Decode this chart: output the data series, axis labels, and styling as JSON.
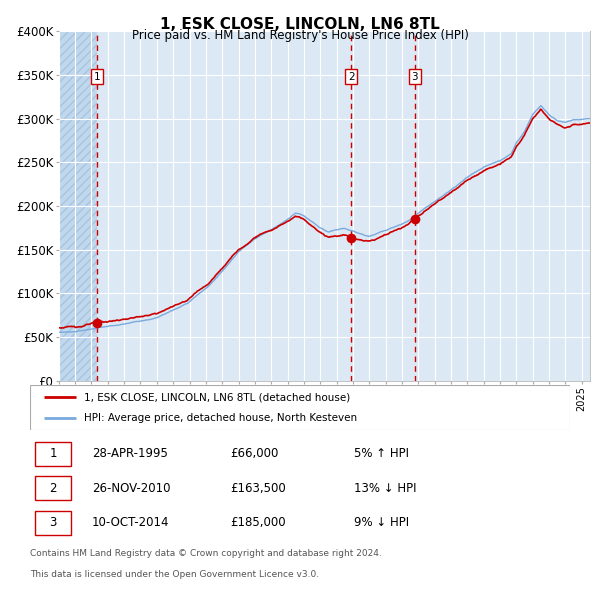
{
  "title": "1, ESK CLOSE, LINCOLN, LN6 8TL",
  "subtitle": "Price paid vs. HM Land Registry's House Price Index (HPI)",
  "ylim": [
    0,
    400000
  ],
  "yticks": [
    0,
    50000,
    100000,
    150000,
    200000,
    250000,
    300000,
    350000,
    400000
  ],
  "ytick_labels": [
    "£0",
    "£50K",
    "£100K",
    "£150K",
    "£200K",
    "£250K",
    "£300K",
    "£350K",
    "£400K"
  ],
  "bg_color": "#dce9f5",
  "grid_color": "#ffffff",
  "red_line_color": "#cc0000",
  "blue_line_color": "#7aaadd",
  "marker_color": "#cc0000",
  "vline_color": "#cc0000",
  "transaction_dates": [
    1995.32,
    2010.9,
    2014.78
  ],
  "transaction_prices": [
    66000,
    163500,
    185000
  ],
  "transaction_labels": [
    "1",
    "2",
    "3"
  ],
  "legend_red": "1, ESK CLOSE, LINCOLN, LN6 8TL (detached house)",
  "legend_blue": "HPI: Average price, detached house, North Kesteven",
  "table_rows": [
    [
      "1",
      "28-APR-1995",
      "£66,000",
      "5% ↑ HPI"
    ],
    [
      "2",
      "26-NOV-2010",
      "£163,500",
      "13% ↓ HPI"
    ],
    [
      "3",
      "10-OCT-2014",
      "£185,000",
      "9% ↓ HPI"
    ]
  ],
  "footnote1": "Contains HM Land Registry data © Crown copyright and database right 2024.",
  "footnote2": "This data is licensed under the Open Government Licence v3.0.",
  "xmin": 1993.0,
  "xmax": 2025.5
}
